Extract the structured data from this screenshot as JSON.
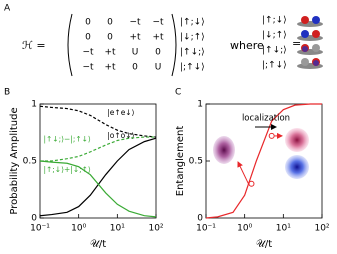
{
  "panel_a": {
    "label": "A",
    "lhs": "ℋ =",
    "matrix": [
      [
        "0",
        "0",
        "−t",
        "−t"
      ],
      [
        "0",
        "0",
        "+t",
        "+t"
      ],
      [
        "−t",
        "+t",
        "U",
        "0"
      ],
      [
        "−t",
        "+t",
        "0",
        "U"
      ]
    ],
    "kets": [
      "|↑;↓⟩",
      "|↓;↑⟩",
      "|↑↓;⟩",
      "|;↑↓⟩"
    ],
    "where": "where",
    "legend_kets": [
      "|↑;↓⟩",
      "|↓;↑⟩",
      "|↑↓;⟩",
      "|;↑↓⟩"
    ],
    "equals": "="
  },
  "chart_data": [
    {
      "panel": "B",
      "type": "line",
      "xlabel": "𝒰/t",
      "ylabel": "Probability Amplitude",
      "xscale": "log",
      "x": [
        0.1,
        0.2,
        0.5,
        1,
        2,
        5,
        10,
        20,
        50,
        100
      ],
      "xlim": [
        0.1,
        100
      ],
      "xticks": [
        {
          "value": 0.1,
          "label": "10⁻¹"
        },
        {
          "value": 1,
          "label": "10⁰"
        },
        {
          "value": 10,
          "label": "10¹"
        },
        {
          "value": 100,
          "label": "10²"
        }
      ],
      "ylim": [
        0,
        1
      ],
      "yticks": [
        0,
        0.5,
        1
      ],
      "series": [
        {
          "name": "|e↑e↓⟩",
          "color": "#000000",
          "dashed": true,
          "values": [
            0.98,
            0.97,
            0.96,
            0.94,
            0.9,
            0.82,
            0.77,
            0.74,
            0.72,
            0.71
          ]
        },
        {
          "name": "|o↑o↓⟩",
          "color": "#000000",
          "dashed": false,
          "values": [
            0.02,
            0.03,
            0.05,
            0.1,
            0.2,
            0.38,
            0.5,
            0.6,
            0.67,
            0.7
          ]
        },
        {
          "name": "|↑↓;⟩−|;↑↓⟩",
          "color": "#3aaa35",
          "dashed": true,
          "values": [
            0.5,
            0.5,
            0.52,
            0.54,
            0.58,
            0.64,
            0.68,
            0.7,
            0.71,
            0.71
          ]
        },
        {
          "name": "|↑;↓⟩+|↓;↑⟩",
          "color": "#3aaa35",
          "dashed": false,
          "values": [
            0.5,
            0.49,
            0.48,
            0.45,
            0.38,
            0.22,
            0.12,
            0.06,
            0.02,
            0.01
          ]
        }
      ]
    },
    {
      "panel": "C",
      "type": "line",
      "xlabel": "𝒰/t",
      "ylabel": "Entanglement",
      "xscale": "log",
      "x": [
        0.1,
        0.2,
        0.5,
        1,
        2,
        5,
        10,
        20,
        50,
        100
      ],
      "xlim": [
        0.1,
        100
      ],
      "xticks": [
        {
          "value": 0.1,
          "label": "10⁻¹"
        },
        {
          "value": 1,
          "label": "10⁰"
        },
        {
          "value": 10,
          "label": "10¹"
        },
        {
          "value": 100,
          "label": "10²"
        }
      ],
      "ylim": [
        0,
        1
      ],
      "yticks": [
        0,
        0.5,
        1
      ],
      "series": [
        {
          "color": "#e8282b",
          "dashed": false,
          "values": [
            0.0,
            0.01,
            0.05,
            0.2,
            0.5,
            0.85,
            0.95,
            0.99,
            1,
            1
          ]
        }
      ],
      "markers": {
        "x": [
          1.5,
          5
        ],
        "values": [
          0.3,
          0.72
        ],
        "color": "#e8282b"
      },
      "annotation": "localization"
    }
  ]
}
